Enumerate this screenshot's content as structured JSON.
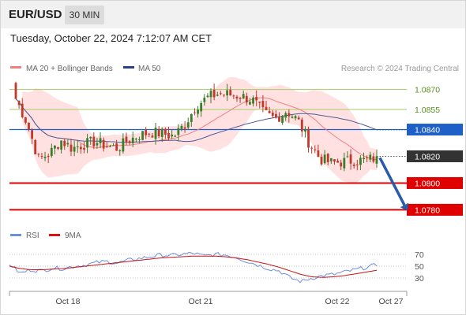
{
  "header": {
    "symbol": "EUR/USD",
    "timeframe": "30 MIN",
    "timestamp": "Tuesday, October 22, 2024 7:12:07 AM CET"
  },
  "legend": {
    "bollinger_label": "MA 20 + Bollinger Bands",
    "ma50_label": "MA 50",
    "credit": "Research © 2024 Trading Central"
  },
  "rsi_legend": {
    "rsi_label": "RSI",
    "ma_label": "9MA"
  },
  "colors": {
    "resistance_line": "#a6c96a",
    "resistance_text": "#5a8f1f",
    "pivot_line": "#1f5fc8",
    "support_line": "#e00000",
    "current_badge": "#333333",
    "candle_up": "#3b7d2a",
    "candle_down": "#c0392b",
    "bollinger_fill": "#ffdcdc",
    "ma20": "#f08080",
    "ma50": "#4a5a99",
    "rsi": "#6a8fdc",
    "rsi_ma": "#cc1111",
    "forecast_arrow": "#2a5aa8"
  },
  "chart_data": [
    {
      "type": "candlestick",
      "title": "EUR/USD",
      "ylim": [
        1.0772,
        1.0878
      ],
      "x_ticks": [
        "Oct 18",
        "Oct 21",
        "Oct 22",
        "Oct 27"
      ],
      "levels": [
        {
          "label": "1.0870",
          "value": 1.087,
          "kind": "resistance"
        },
        {
          "label": "1.0855",
          "value": 1.0855,
          "kind": "resistance"
        },
        {
          "label": "1.0840",
          "value": 1.084,
          "kind": "pivot"
        },
        {
          "label": "1.0820",
          "value": 1.082,
          "kind": "current"
        },
        {
          "label": "1.0800",
          "value": 1.08,
          "kind": "support"
        },
        {
          "label": "1.0780",
          "value": 1.078,
          "kind": "support"
        }
      ],
      "forecast": {
        "from": 1.082,
        "to": 1.078
      },
      "close_path": [
        1.0863,
        1.0845,
        1.0818,
        1.0822,
        1.0832,
        1.0826,
        1.0829,
        1.0831,
        1.0828,
        1.0826,
        1.0832,
        1.0836,
        1.0838,
        1.0837,
        1.0835,
        1.0844,
        1.0858,
        1.0864,
        1.0867,
        1.0866,
        1.0865,
        1.0862,
        1.0852,
        1.0848,
        1.0854,
        1.0847,
        1.083,
        1.0818,
        1.0815,
        1.0816,
        1.0817,
        1.0817,
        1.0819
      ],
      "series": [
        {
          "name": "MA 20 + Bollinger Bands"
        },
        {
          "name": "MA 50"
        }
      ]
    },
    {
      "type": "line",
      "ylim": [
        10,
        90
      ],
      "y_ticks": [
        70,
        50,
        30
      ],
      "series": [
        {
          "name": "RSI",
          "values": [
            54,
            38,
            44,
            42,
            47,
            46,
            50,
            52,
            56,
            58,
            55,
            60,
            63,
            66,
            69,
            68,
            70,
            72,
            67,
            70,
            69,
            65,
            58,
            52,
            46,
            42,
            30,
            24,
            30,
            34,
            36,
            40,
            44,
            48,
            52
          ]
        },
        {
          "name": "9MA",
          "values": [
            50,
            46,
            44,
            44,
            45,
            46,
            48,
            50,
            52,
            54,
            56,
            58,
            60,
            62,
            64,
            65,
            66,
            67,
            67,
            67,
            66,
            64,
            61,
            57,
            53,
            48,
            42,
            36,
            32,
            31,
            32,
            34,
            37,
            40,
            43
          ]
        }
      ]
    }
  ]
}
